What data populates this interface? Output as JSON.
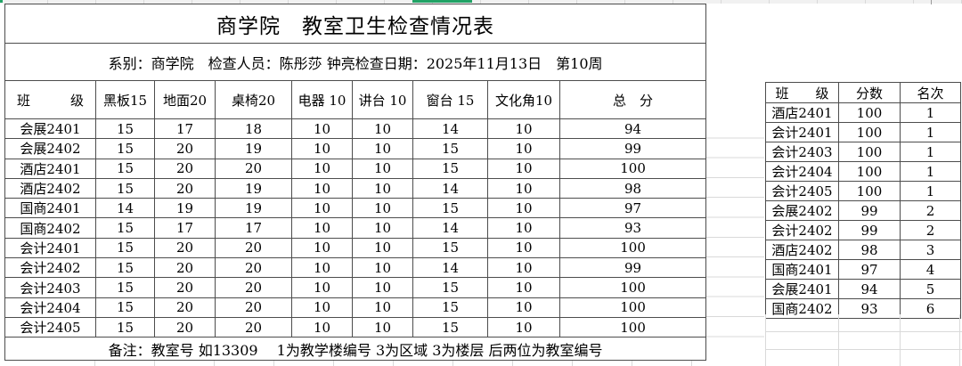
{
  "title": "商学院　教室卫生检查情况表",
  "info_line": "系别：商学院　检查人员：陈彤莎 钟亮检查日期：2025年11月13日　第10周",
  "main_table": {
    "headers": [
      "班　　　级",
      "黑板15",
      "地面20",
      "桌椅20",
      "电器 10",
      "讲台 10",
      "窗台 15",
      "文化角10",
      "总　分"
    ],
    "rows": [
      [
        "会展2401",
        15,
        17,
        18,
        10,
        10,
        14,
        10,
        94
      ],
      [
        "会展2402",
        15,
        20,
        19,
        10,
        10,
        15,
        10,
        99
      ],
      [
        "酒店2401",
        15,
        20,
        20,
        10,
        10,
        15,
        10,
        100
      ],
      [
        "酒店2402",
        15,
        20,
        19,
        10,
        10,
        14,
        10,
        98
      ],
      [
        "国商2401",
        14,
        19,
        19,
        10,
        10,
        15,
        10,
        97
      ],
      [
        "国商2402",
        15,
        17,
        17,
        10,
        10,
        14,
        10,
        93
      ],
      [
        "会计2401",
        15,
        20,
        20,
        10,
        10,
        15,
        10,
        100
      ],
      [
        "会计2402",
        15,
        20,
        20,
        10,
        10,
        14,
        10,
        99
      ],
      [
        "会计2403",
        15,
        20,
        20,
        10,
        10,
        15,
        10,
        100
      ],
      [
        "会计2404",
        15,
        20,
        20,
        10,
        10,
        15,
        10,
        100
      ],
      [
        "会计2405",
        15,
        20,
        20,
        10,
        10,
        15,
        10,
        100
      ]
    ],
    "note": "备注：教室号 如13309　 1为教学楼编号 3为区域 3为楼层 后两位为教室编号"
  },
  "rank_table": {
    "headers": [
      "班　　级",
      "分数",
      "名次"
    ],
    "rows": [
      [
        "酒店2401",
        100,
        1
      ],
      [
        "会计2401",
        100,
        1
      ],
      [
        "会计2403",
        100,
        1
      ],
      [
        "会计2404",
        100,
        1
      ],
      [
        "会计2405",
        100,
        1
      ],
      [
        "会展2402",
        99,
        2
      ],
      [
        "会计2402",
        99,
        2
      ],
      [
        "酒店2402",
        98,
        3
      ],
      [
        "国商2401",
        97,
        4
      ],
      [
        "会展2401",
        94,
        5
      ],
      [
        "国商2402",
        93,
        6
      ]
    ]
  },
  "colors": {
    "accent": "#21a366",
    "border": "#4d4d4d",
    "gridline": "#d9d9d9",
    "text": "#000000"
  }
}
